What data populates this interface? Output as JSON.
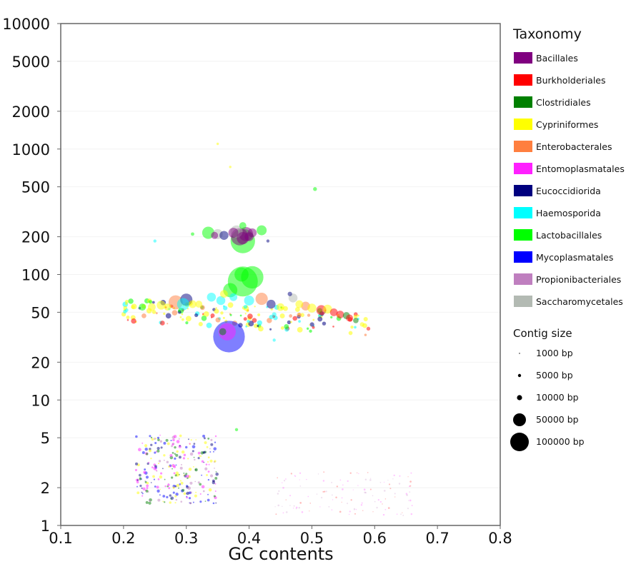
{
  "chart_data": {
    "type": "scatter",
    "xlabel": "GC contents",
    "ylabel": "",
    "xlim": [
      0.1,
      0.8
    ],
    "ylim": [
      1,
      10000
    ],
    "y_scale": "log",
    "x_ticks": [
      0.1,
      0.2,
      0.3,
      0.4,
      0.5,
      0.6,
      0.7,
      0.8
    ],
    "x_tick_labels": [
      "0.1",
      "0.2",
      "0.3",
      "0.4",
      "0.5",
      "0.6",
      "0.7",
      "0.8"
    ],
    "y_ticks": [
      1,
      2,
      5,
      10,
      20,
      50,
      100,
      200,
      500,
      1000,
      2000,
      5000,
      10000
    ],
    "y_tick_labels": [
      "1",
      "2",
      "5",
      "10",
      "20",
      "50",
      "100",
      "200",
      "500",
      "1000",
      "2000",
      "5000",
      "10000"
    ],
    "grid": "horizontal-light",
    "legend": {
      "title": "Taxonomy",
      "placement": "right",
      "entries": [
        {
          "label": "Bacillales",
          "color": "#800080"
        },
        {
          "label": "Burkholderiales",
          "color": "#ff0000"
        },
        {
          "label": "Clostridiales",
          "color": "#008000"
        },
        {
          "label": "Cypriniformes",
          "color": "#ffff00"
        },
        {
          "label": "Enterobacterales",
          "color": "#ff7f3f"
        },
        {
          "label": "Entomoplasmatales",
          "color": "#ff20ff"
        },
        {
          "label": "Eucoccidiorida",
          "color": "#00007f"
        },
        {
          "label": "Haemosporida",
          "color": "#00ffff"
        },
        {
          "label": "Lactobacillales",
          "color": "#00ff00"
        },
        {
          "label": "Mycoplasmatales",
          "color": "#0000ff"
        },
        {
          "label": "Propionibacteriales",
          "color": "#bf7fbf"
        },
        {
          "label": "Saccharomycetales",
          "color": "#b3bab3"
        }
      ]
    },
    "size_legend": {
      "title": "Contig size",
      "entries": [
        {
          "label": "1000 bp",
          "bp": 1000
        },
        {
          "label": "5000 bp",
          "bp": 5000
        },
        {
          "label": "10000 bp",
          "bp": 10000
        },
        {
          "label": "50000 bp",
          "bp": 50000
        },
        {
          "label": "100000 bp",
          "bp": 100000
        }
      ]
    },
    "points": [
      {
        "x": 0.368,
        "y": 32,
        "size": 100000,
        "taxon": "Mycoplasmatales"
      },
      {
        "x": 0.365,
        "y": 35,
        "size": 30000,
        "taxon": "Entomoplasmatales"
      },
      {
        "x": 0.358,
        "y": 35,
        "size": 5000,
        "taxon": "Clostridiales"
      },
      {
        "x": 0.39,
        "y": 185,
        "size": 60000,
        "taxon": "Lactobacillales"
      },
      {
        "x": 0.39,
        "y": 88,
        "size": 90000,
        "taxon": "Lactobacillales"
      },
      {
        "x": 0.405,
        "y": 95,
        "size": 50000,
        "taxon": "Lactobacillales"
      },
      {
        "x": 0.388,
        "y": 100,
        "size": 20000,
        "taxon": "Lactobacillales"
      },
      {
        "x": 0.37,
        "y": 75,
        "size": 20000,
        "taxon": "Lactobacillales"
      },
      {
        "x": 0.385,
        "y": 200,
        "size": 30000,
        "taxon": "Bacillales"
      },
      {
        "x": 0.395,
        "y": 210,
        "size": 20000,
        "taxon": "Bacillales"
      },
      {
        "x": 0.38,
        "y": 220,
        "size": 15000,
        "taxon": "Saccharomycetales"
      },
      {
        "x": 0.39,
        "y": 195,
        "size": 15000,
        "taxon": "Bacillales"
      },
      {
        "x": 0.375,
        "y": 215,
        "size": 10000,
        "taxon": "Bacillales"
      },
      {
        "x": 0.36,
        "y": 205,
        "size": 8000,
        "taxon": "Eucoccidiorida"
      },
      {
        "x": 0.35,
        "y": 210,
        "size": 10000,
        "taxon": "Saccharomycetales"
      },
      {
        "x": 0.335,
        "y": 215,
        "size": 15000,
        "taxon": "Lactobacillales"
      },
      {
        "x": 0.4,
        "y": 200,
        "size": 8000,
        "taxon": "Bacillales"
      },
      {
        "x": 0.42,
        "y": 225,
        "size": 10000,
        "taxon": "Lactobacillales"
      },
      {
        "x": 0.345,
        "y": 205,
        "size": 5000,
        "taxon": "Bacillales"
      },
      {
        "x": 0.405,
        "y": 215,
        "size": 8000,
        "taxon": "Bacillales"
      },
      {
        "x": 0.39,
        "y": 245,
        "size": 5000,
        "taxon": "Lactobacillales"
      },
      {
        "x": 0.505,
        "y": 480,
        "size": 1500,
        "taxon": "Lactobacillales"
      },
      {
        "x": 0.35,
        "y": 1100,
        "size": 600,
        "taxon": "Cypriniformes"
      },
      {
        "x": 0.37,
        "y": 720,
        "size": 600,
        "taxon": "Cypriniformes"
      },
      {
        "x": 0.283,
        "y": 60,
        "size": 20000,
        "taxon": "Enterobacterales"
      },
      {
        "x": 0.3,
        "y": 63,
        "size": 15000,
        "taxon": "Eucoccidiorida"
      },
      {
        "x": 0.295,
        "y": 58,
        "size": 15000,
        "taxon": "Haemosporida"
      },
      {
        "x": 0.26,
        "y": 57,
        "size": 8000,
        "taxon": "Cypriniformes"
      },
      {
        "x": 0.245,
        "y": 55,
        "size": 6000,
        "taxon": "Cypriniformes"
      },
      {
        "x": 0.23,
        "y": 55,
        "size": 5000,
        "taxon": "Lactobacillales"
      },
      {
        "x": 0.27,
        "y": 55,
        "size": 5000,
        "taxon": "Cypriniformes"
      },
      {
        "x": 0.31,
        "y": 58,
        "size": 6000,
        "taxon": "Cypriniformes"
      },
      {
        "x": 0.32,
        "y": 58,
        "size": 5000,
        "taxon": "Cypriniformes"
      },
      {
        "x": 0.34,
        "y": 66,
        "size": 8000,
        "taxon": "Haemosporida"
      },
      {
        "x": 0.355,
        "y": 62,
        "size": 8000,
        "taxon": "Haemosporida"
      },
      {
        "x": 0.36,
        "y": 70,
        "size": 6000,
        "taxon": "Cypriniformes"
      },
      {
        "x": 0.375,
        "y": 66,
        "size": 6000,
        "taxon": "Haemosporida"
      },
      {
        "x": 0.4,
        "y": 62,
        "size": 10000,
        "taxon": "Haemosporida"
      },
      {
        "x": 0.42,
        "y": 64,
        "size": 15000,
        "taxon": "Enterobacterales"
      },
      {
        "x": 0.435,
        "y": 58,
        "size": 8000,
        "taxon": "Eucoccidiorida"
      },
      {
        "x": 0.45,
        "y": 55,
        "size": 6000,
        "taxon": "Cypriniformes"
      },
      {
        "x": 0.47,
        "y": 65,
        "size": 8000,
        "taxon": "Saccharomycetales"
      },
      {
        "x": 0.48,
        "y": 58,
        "size": 6000,
        "taxon": "Cypriniformes"
      },
      {
        "x": 0.49,
        "y": 56,
        "size": 8000,
        "taxon": "Enterobacterales"
      },
      {
        "x": 0.5,
        "y": 54,
        "size": 8000,
        "taxon": "Cypriniformes"
      },
      {
        "x": 0.515,
        "y": 52,
        "size": 10000,
        "taxon": "Burkholderiales"
      },
      {
        "x": 0.525,
        "y": 53,
        "size": 8000,
        "taxon": "Cypriniformes"
      },
      {
        "x": 0.535,
        "y": 50,
        "size": 6000,
        "taxon": "Burkholderiales"
      },
      {
        "x": 0.545,
        "y": 48,
        "size": 6000,
        "taxon": "Burkholderiales"
      },
      {
        "x": 0.555,
        "y": 47,
        "size": 5000,
        "taxon": "Clostridiales"
      },
      {
        "x": 0.56,
        "y": 45,
        "size": 5000,
        "taxon": "Burkholderiales"
      },
      {
        "x": 0.57,
        "y": 43,
        "size": 3000,
        "taxon": "Clostridiales"
      },
      {
        "x": 0.58,
        "y": 40,
        "size": 2000,
        "taxon": "Cypriniformes"
      },
      {
        "x": 0.59,
        "y": 37,
        "size": 1500,
        "taxon": "Burkholderiales"
      },
      {
        "x": 0.465,
        "y": 70,
        "size": 2000,
        "taxon": "Eucoccidiorida"
      },
      {
        "x": 0.44,
        "y": 48,
        "size": 2000,
        "taxon": "Haemosporida"
      },
      {
        "x": 0.215,
        "y": 55,
        "size": 1500,
        "taxon": "Cypriniformes"
      },
      {
        "x": 0.205,
        "y": 52,
        "size": 1200,
        "taxon": "Haemosporida"
      },
      {
        "x": 0.25,
        "y": 185,
        "size": 1000,
        "taxon": "Haemosporida"
      },
      {
        "x": 0.31,
        "y": 210,
        "size": 1200,
        "taxon": "Lactobacillales"
      },
      {
        "x": 0.43,
        "y": 185,
        "size": 1000,
        "taxon": "Eucoccidiorida"
      },
      {
        "x": 0.44,
        "y": 30,
        "size": 1000,
        "taxon": "Haemosporida"
      },
      {
        "x": 0.38,
        "y": 5.8,
        "size": 1000,
        "taxon": "Lactobacillales"
      },
      {
        "x": 0.29,
        "y": 3.5,
        "size": 800,
        "taxon": "Eucoccidiorida"
      },
      {
        "x": 0.27,
        "y": 3.2,
        "size": 600,
        "taxon": "Propionibacteriales"
      },
      {
        "x": 0.3,
        "y": 4.2,
        "size": 600,
        "taxon": "Mycoplasmatales"
      },
      {
        "x": 0.26,
        "y": 2.6,
        "size": 500,
        "taxon": "Entomoplasmatales"
      },
      {
        "x": 0.32,
        "y": 2.2,
        "size": 500,
        "taxon": "Propionibacteriales"
      },
      {
        "x": 0.25,
        "y": 3.8,
        "size": 500,
        "taxon": "Mycoplasmatales"
      },
      {
        "x": 0.34,
        "y": 4.8,
        "size": 500,
        "taxon": "Propionibacteriales"
      },
      {
        "x": 0.28,
        "y": 2.0,
        "size": 500,
        "taxon": "Cypriniformes"
      }
    ]
  }
}
